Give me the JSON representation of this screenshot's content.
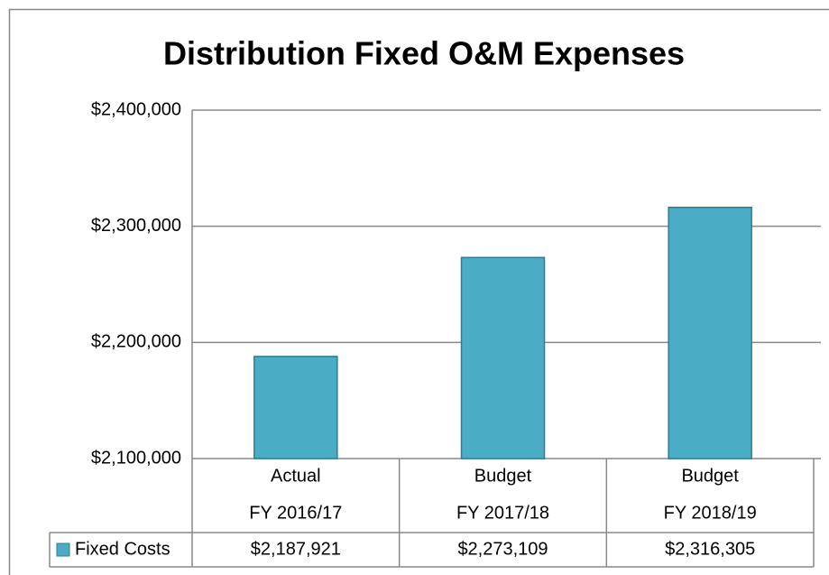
{
  "chart_data": {
    "type": "bar",
    "title": "Distribution Fixed O&M Expenses",
    "categories": [
      [
        "Actual",
        "FY 2016/17"
      ],
      [
        "Budget",
        "FY 2017/18"
      ],
      [
        "Budget",
        "FY 2018/19"
      ]
    ],
    "series": [
      {
        "name": "Fixed Costs",
        "color": "#4bacc6",
        "values": [
          2187921,
          2273109,
          2316305
        ],
        "value_labels": [
          "$2,187,921",
          "$2,273,109",
          "$2,316,305"
        ]
      }
    ],
    "ylim": [
      2100000,
      2400000
    ],
    "yticks": [
      {
        "value": 2100000,
        "label": "$2,100,000"
      },
      {
        "value": 2200000,
        "label": "$2,200,000"
      },
      {
        "value": 2300000,
        "label": "$2,300,000"
      },
      {
        "value": 2400000,
        "label": "$2,400,000"
      }
    ],
    "grid": true
  }
}
